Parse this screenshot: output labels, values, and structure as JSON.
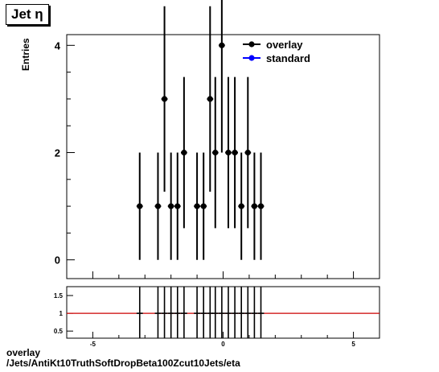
{
  "title": "Jet η",
  "footer": {
    "line1": "overlay",
    "line2": "/Jets/AntiKt10TruthSoftDropBeta100Zcut10Jets/eta"
  },
  "colors": {
    "overlay": "#000000",
    "standard": "#0000ff",
    "ratio_line": "#cc0000"
  },
  "chart_data": [
    {
      "type": "scatter",
      "ylabel": "Entries",
      "xlim": [
        -6,
        6
      ],
      "ylim": [
        -0.35,
        4.2
      ],
      "y_ticks": [
        0,
        2,
        4
      ],
      "x_ticks": [
        -5,
        0,
        5
      ],
      "legend": {
        "placement": "top-right",
        "entries": [
          "overlay",
          "standard"
        ]
      },
      "series": [
        {
          "name": "overlay",
          "points": [
            {
              "x": -3.2,
              "y": 1,
              "err": 1
            },
            {
              "x": -2.5,
              "y": 1,
              "err": 1
            },
            {
              "x": -2.25,
              "y": 3,
              "err": 1.73
            },
            {
              "x": -2.0,
              "y": 1,
              "err": 1
            },
            {
              "x": -1.75,
              "y": 1,
              "err": 1
            },
            {
              "x": -1.5,
              "y": 2,
              "err": 1.41
            },
            {
              "x": -1.0,
              "y": 1,
              "err": 1
            },
            {
              "x": -0.75,
              "y": 1,
              "err": 1
            },
            {
              "x": -0.5,
              "y": 3,
              "err": 1.73
            },
            {
              "x": -0.3,
              "y": 2,
              "err": 1.41
            },
            {
              "x": -0.05,
              "y": 4,
              "err": 2
            },
            {
              "x": 0.2,
              "y": 2,
              "err": 1.41
            },
            {
              "x": 0.45,
              "y": 2,
              "err": 1.41
            },
            {
              "x": 0.7,
              "y": 1,
              "err": 1
            },
            {
              "x": 0.95,
              "y": 2,
              "err": 1.41
            },
            {
              "x": 1.2,
              "y": 1,
              "err": 1
            },
            {
              "x": 1.45,
              "y": 1,
              "err": 1
            }
          ]
        },
        {
          "name": "standard",
          "points": []
        }
      ]
    },
    {
      "type": "line",
      "xlim": [
        -6,
        6
      ],
      "ylim": [
        0.3,
        1.75
      ],
      "y_ticks": [
        0.5,
        1,
        1.5
      ],
      "y_tick_labels": [
        "0.5",
        "1",
        "1.5"
      ],
      "x_ticks": [
        -5,
        0,
        5
      ],
      "reference": 1,
      "ratio_x": [
        -3.2,
        -2.5,
        -2.25,
        -2.0,
        -1.75,
        -1.5,
        -1.0,
        -0.75,
        -0.5,
        -0.3,
        -0.05,
        0.2,
        0.45,
        0.7,
        0.95,
        1.2,
        1.45
      ],
      "ratio_values": [
        1,
        1,
        1,
        1,
        1,
        1,
        1,
        1,
        1,
        1,
        1,
        1,
        1,
        1,
        1,
        1,
        1
      ]
    }
  ]
}
